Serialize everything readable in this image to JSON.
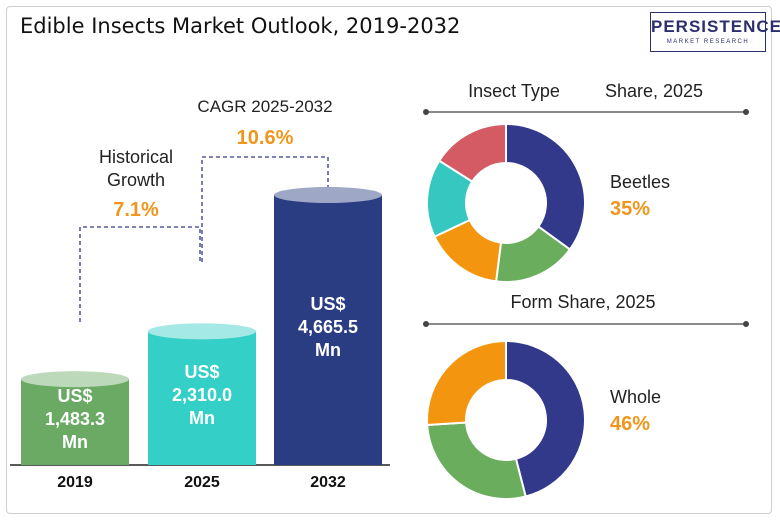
{
  "title": "Edible Insects Market Outlook, 2019-2032",
  "logo": {
    "main": "PERSISTENCE",
    "sub": "MARKET RESEARCH"
  },
  "annotations": {
    "historical_label_line1": "Historical",
    "historical_label_line2": "Growth",
    "historical_value": "7.1%",
    "cagr_label": "CAGR 2025-2032",
    "cagr_value": "10.6%"
  },
  "colors": {
    "bar_2019": "#6aaa64",
    "bar_2025": "#34cfc6",
    "bar_2032": "#2a3c82",
    "accent_orange": "#f0961c",
    "navy": "#33398a",
    "green": "#69ad5d",
    "orange": "#f4950f",
    "teal": "#36c8c0",
    "red": "#d45b63"
  },
  "chart_data": [
    {
      "type": "bar",
      "categories": [
        "2019",
        "2025",
        "2032"
      ],
      "values": [
        1483.3,
        2310.0,
        4665.5
      ],
      "value_labels": [
        [
          "US$",
          "1,483.3",
          "Mn"
        ],
        [
          "US$",
          "2,310.0",
          "Mn"
        ],
        [
          "US$",
          "4,665.5",
          "Mn"
        ]
      ]
    },
    {
      "type": "pie",
      "title_left": "Insect Type",
      "title_right": "Share, 2025",
      "highlight_label": "Beetles",
      "highlight_value": "35%",
      "slices": [
        35,
        17,
        16,
        16,
        16
      ]
    },
    {
      "type": "pie",
      "title": "Form Share, 2025",
      "highlight_label": "Whole",
      "highlight_value": "46%",
      "slices": [
        46,
        28,
        26
      ]
    }
  ]
}
